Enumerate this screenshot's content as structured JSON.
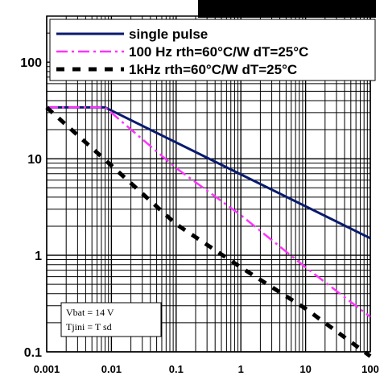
{
  "chart_data": {
    "type": "line",
    "title": "",
    "xlabel": "",
    "ylabel": "",
    "x_scale": "log",
    "y_scale": "log",
    "xlim": [
      0.001,
      100
    ],
    "ylim": [
      0.1,
      300
    ],
    "x_ticks": [
      "0.001",
      "0.01",
      "0.1",
      "1",
      "10",
      "100"
    ],
    "y_ticks": [
      "0.1",
      "1",
      "10",
      "100"
    ],
    "grid": true,
    "legend_position": "top",
    "legend": [
      {
        "label": "single pulse",
        "color": "#0a1a6e",
        "style": "solid"
      },
      {
        "label": "100 Hz  rth=60°C/W dT=25°C",
        "color": "#ff33ff",
        "style": "dashdot"
      },
      {
        "label": "1kHz    rth=60°C/W dT=25°C",
        "color": "#000000",
        "style": "dashed"
      }
    ],
    "series": [
      {
        "name": "single pulse",
        "color": "#0a1a6e",
        "x": [
          0.001,
          0.008,
          100
        ],
        "y": [
          34,
          34,
          1.5
        ]
      },
      {
        "name": "100 Hz  rth=60°C/W dT=25°C",
        "color": "#ff33ff",
        "x": [
          0.001,
          0.008,
          0.1,
          1,
          10,
          100
        ],
        "y": [
          34,
          34,
          8.0,
          2.6,
          0.75,
          0.23
        ]
      },
      {
        "name": "1kHz    rth=60°C/W dT=25°C",
        "color": "#000000",
        "x": [
          0.001,
          0.01,
          0.1,
          1,
          10,
          100
        ],
        "y": [
          34,
          8.5,
          2.1,
          0.75,
          0.28,
          0.09
        ]
      }
    ],
    "annotations": [
      "Vbat = 14 V",
      "Tjini = T sd"
    ]
  }
}
